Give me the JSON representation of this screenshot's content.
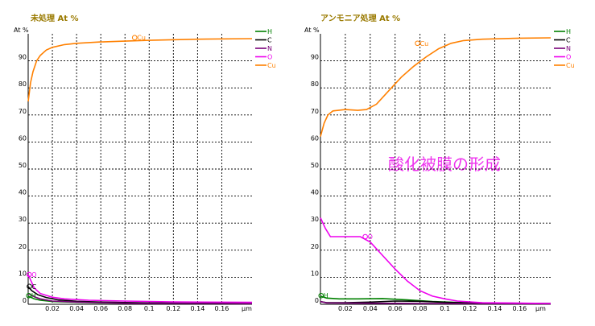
{
  "chart_data": [
    {
      "type": "line",
      "title": "未処理 At %",
      "ylabel": "At %",
      "xunit": "μm",
      "xlim": [
        0,
        0.185
      ],
      "ylim": [
        0,
        100
      ],
      "xticks": [
        0.02,
        0.04,
        0.06,
        0.08,
        0.1,
        0.12,
        0.14,
        0.16
      ],
      "xtick_labels": [
        "0.02",
        "0.04",
        "0.06",
        "0.08",
        "0.1",
        "0.12",
        "0.14",
        "0.16"
      ],
      "yticks": [
        0,
        10,
        20,
        30,
        40,
        50,
        60,
        70,
        80,
        90
      ],
      "ytick_labels": [
        "0",
        "10",
        "20",
        "30",
        "40",
        "50",
        "60",
        "70",
        "80",
        "90"
      ],
      "grid": true,
      "legend_position": "top-right",
      "series": [
        {
          "name": "H",
          "color": "#008000",
          "points": [
            [
              0.0,
              3
            ],
            [
              0.005,
              2
            ],
            [
              0.01,
              1.5
            ],
            [
              0.02,
              1
            ],
            [
              0.04,
              0.7
            ],
            [
              0.06,
              0.5
            ],
            [
              0.1,
              0.4
            ],
            [
              0.185,
              0.3
            ]
          ]
        },
        {
          "name": "C",
          "color": "#000000",
          "points": [
            [
              0.0,
              6.5
            ],
            [
              0.003,
              5
            ],
            [
              0.008,
              3.5
            ],
            [
              0.015,
              2.5
            ],
            [
              0.025,
              1.6
            ],
            [
              0.04,
              1.1
            ],
            [
              0.06,
              0.8
            ],
            [
              0.1,
              0.5
            ],
            [
              0.185,
              0.3
            ]
          ]
        },
        {
          "name": "N",
          "color": "#7a007a",
          "points": [
            [
              0.0,
              4
            ],
            [
              0.005,
              2.8
            ],
            [
              0.01,
              2
            ],
            [
              0.02,
              1.2
            ],
            [
              0.04,
              0.8
            ],
            [
              0.08,
              0.4
            ],
            [
              0.185,
              0.2
            ]
          ]
        },
        {
          "name": "O",
          "color": "#ee00ee",
          "points": [
            [
              0.0,
              11
            ],
            [
              0.002,
              9
            ],
            [
              0.005,
              6
            ],
            [
              0.01,
              4
            ],
            [
              0.02,
              2.6
            ],
            [
              0.03,
              2
            ],
            [
              0.05,
              1.5
            ],
            [
              0.08,
              1.2
            ],
            [
              0.12,
              0.9
            ],
            [
              0.185,
              0.7
            ]
          ]
        },
        {
          "name": "Cu",
          "color": "#ff8000",
          "points": [
            [
              0.0,
              75
            ],
            [
              0.002,
              82
            ],
            [
              0.004,
              86
            ],
            [
              0.007,
              90
            ],
            [
              0.01,
              92
            ],
            [
              0.015,
              94
            ],
            [
              0.02,
              95
            ],
            [
              0.03,
              96
            ],
            [
              0.04,
              96.5
            ],
            [
              0.06,
              97
            ],
            [
              0.08,
              97.3
            ],
            [
              0.1,
              97.6
            ],
            [
              0.14,
              98
            ],
            [
              0.185,
              98.2
            ]
          ]
        }
      ],
      "curve_markers": [
        {
          "series": "Cu",
          "label": "Cu",
          "x": 0.088,
          "y": 98.6
        },
        {
          "series": "O",
          "label": "O",
          "x": 0.0008,
          "y": 11
        },
        {
          "series": "C",
          "label": "C",
          "x": 0.001,
          "y": 6.6
        },
        {
          "series": "H",
          "label": "H",
          "x": 0.0005,
          "y": 3.2
        }
      ]
    },
    {
      "type": "line",
      "title": "アンモニア処理 At %",
      "ylabel": "At %",
      "xunit": "μm",
      "xlim": [
        0,
        0.185
      ],
      "ylim": [
        0,
        100
      ],
      "xticks": [
        0.02,
        0.04,
        0.06,
        0.08,
        0.1,
        0.12,
        0.14,
        0.16
      ],
      "xtick_labels": [
        "0.02",
        "0.04",
        "0.06",
        "0.08",
        "0.1",
        "0.12",
        "0.14",
        "0.16"
      ],
      "yticks": [
        0,
        10,
        20,
        30,
        40,
        50,
        60,
        70,
        80,
        90
      ],
      "ytick_labels": [
        "0",
        "10",
        "20",
        "30",
        "40",
        "50",
        "60",
        "70",
        "80",
        "90"
      ],
      "grid": true,
      "legend_position": "top-right",
      "annotation": "酸化被膜の形成",
      "series": [
        {
          "name": "H",
          "color": "#008000",
          "points": [
            [
              0.0,
              3
            ],
            [
              0.005,
              2.3
            ],
            [
              0.015,
              2
            ],
            [
              0.03,
              2
            ],
            [
              0.05,
              2.1
            ],
            [
              0.07,
              1.6
            ],
            [
              0.09,
              1
            ],
            [
              0.12,
              0.5
            ],
            [
              0.185,
              0.3
            ]
          ]
        },
        {
          "name": "C",
          "color": "#000000",
          "points": [
            [
              0.0,
              1
            ],
            [
              0.005,
              0.6
            ],
            [
              0.02,
              0.6
            ],
            [
              0.04,
              0.8
            ],
            [
              0.06,
              1.2
            ],
            [
              0.08,
              1.1
            ],
            [
              0.1,
              0.7
            ],
            [
              0.13,
              0.4
            ],
            [
              0.185,
              0.3
            ]
          ]
        },
        {
          "name": "N",
          "color": "#7a007a",
          "points": [
            [
              0.0,
              1
            ],
            [
              0.005,
              0.5
            ],
            [
              0.04,
              0.4
            ],
            [
              0.08,
              0.3
            ],
            [
              0.185,
              0.2
            ]
          ]
        },
        {
          "name": "O",
          "color": "#ee00ee",
          "points": [
            [
              0.0,
              32
            ],
            [
              0.004,
              28
            ],
            [
              0.008,
              25
            ],
            [
              0.02,
              25
            ],
            [
              0.032,
              25
            ],
            [
              0.04,
              23
            ],
            [
              0.05,
              18
            ],
            [
              0.06,
              13
            ],
            [
              0.07,
              8.5
            ],
            [
              0.08,
              5
            ],
            [
              0.09,
              3
            ],
            [
              0.1,
              2
            ],
            [
              0.11,
              1.2
            ],
            [
              0.13,
              0.6
            ],
            [
              0.185,
              0.3
            ]
          ]
        },
        {
          "name": "Cu",
          "color": "#ff8000",
          "points": [
            [
              0.0,
              62
            ],
            [
              0.003,
              67
            ],
            [
              0.006,
              70
            ],
            [
              0.01,
              71.5
            ],
            [
              0.02,
              72
            ],
            [
              0.03,
              71.7
            ],
            [
              0.037,
              72
            ],
            [
              0.045,
              74
            ],
            [
              0.055,
              79
            ],
            [
              0.065,
              84
            ],
            [
              0.075,
              88
            ],
            [
              0.085,
              91.5
            ],
            [
              0.095,
              94.5
            ],
            [
              0.105,
              96.5
            ],
            [
              0.115,
              97.5
            ],
            [
              0.13,
              98
            ],
            [
              0.16,
              98.4
            ],
            [
              0.185,
              98.5
            ]
          ]
        }
      ],
      "curve_markers": [
        {
          "series": "Cu",
          "label": "Cu",
          "x": 0.078,
          "y": 96.5
        },
        {
          "series": "O",
          "label": "O",
          "x": 0.036,
          "y": 25
        },
        {
          "series": "H",
          "label": "H",
          "x": 0.0005,
          "y": 3.2
        }
      ]
    }
  ]
}
